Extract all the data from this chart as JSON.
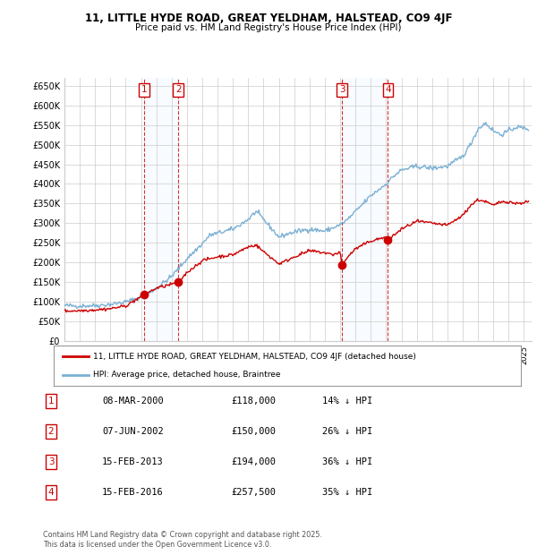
{
  "title1": "11, LITTLE HYDE ROAD, GREAT YELDHAM, HALSTEAD, CO9 4JF",
  "title2": "Price paid vs. HM Land Registry's House Price Index (HPI)",
  "ylim": [
    0,
    670000
  ],
  "yticks": [
    0,
    50000,
    100000,
    150000,
    200000,
    250000,
    300000,
    350000,
    400000,
    450000,
    500000,
    550000,
    600000,
    650000
  ],
  "ytick_labels": [
    "£0",
    "£50K",
    "£100K",
    "£150K",
    "£200K",
    "£250K",
    "£300K",
    "£350K",
    "£400K",
    "£450K",
    "£500K",
    "£550K",
    "£600K",
    "£650K"
  ],
  "xlim_start": 1995.0,
  "xlim_end": 2025.5,
  "sale_dates": [
    2000.19,
    2002.44,
    2013.12,
    2016.12
  ],
  "sale_prices": [
    118000,
    150000,
    194000,
    257500
  ],
  "sale_labels": [
    "1",
    "2",
    "3",
    "4"
  ],
  "legend_label_red": "11, LITTLE HYDE ROAD, GREAT YELDHAM, HALSTEAD, CO9 4JF (detached house)",
  "legend_label_blue": "HPI: Average price, detached house, Braintree",
  "table_rows": [
    [
      "1",
      "08-MAR-2000",
      "£118,000",
      "14% ↓ HPI"
    ],
    [
      "2",
      "07-JUN-2002",
      "£150,000",
      "26% ↓ HPI"
    ],
    [
      "3",
      "15-FEB-2013",
      "£194,000",
      "36% ↓ HPI"
    ],
    [
      "4",
      "15-FEB-2016",
      "£257,500",
      "35% ↓ HPI"
    ]
  ],
  "footnote": "Contains HM Land Registry data © Crown copyright and database right 2025.\nThis data is licensed under the Open Government Licence v3.0.",
  "bg_color": "#ffffff",
  "grid_color": "#cccccc",
  "red_color": "#cc0000",
  "blue_color": "#7ab0d4",
  "shade_color": "#ddeeff",
  "hpi_anchors": [
    [
      1995.0,
      91000
    ],
    [
      1996.0,
      90000
    ],
    [
      1997.0,
      91000
    ],
    [
      1998.0,
      94000
    ],
    [
      1999.0,
      100000
    ],
    [
      2000.0,
      112000
    ],
    [
      2001.0,
      135000
    ],
    [
      2002.0,
      165000
    ],
    [
      2003.0,
      210000
    ],
    [
      2004.0,
      248000
    ],
    [
      2004.5,
      270000
    ],
    [
      2005.0,
      275000
    ],
    [
      2006.0,
      285000
    ],
    [
      2007.0,
      310000
    ],
    [
      2007.5,
      330000
    ],
    [
      2008.0,
      310000
    ],
    [
      2009.0,
      265000
    ],
    [
      2009.5,
      272000
    ],
    [
      2010.0,
      278000
    ],
    [
      2011.0,
      285000
    ],
    [
      2012.0,
      280000
    ],
    [
      2013.0,
      296000
    ],
    [
      2013.5,
      310000
    ],
    [
      2014.0,
      330000
    ],
    [
      2015.0,
      370000
    ],
    [
      2016.0,
      400000
    ],
    [
      2016.5,
      420000
    ],
    [
      2017.0,
      435000
    ],
    [
      2018.0,
      445000
    ],
    [
      2019.0,
      440000
    ],
    [
      2020.0,
      445000
    ],
    [
      2021.0,
      470000
    ],
    [
      2021.5,
      500000
    ],
    [
      2022.0,
      540000
    ],
    [
      2022.5,
      555000
    ],
    [
      2023.0,
      535000
    ],
    [
      2023.5,
      525000
    ],
    [
      2024.0,
      535000
    ],
    [
      2024.5,
      545000
    ],
    [
      2025.3,
      540000
    ]
  ],
  "red_anchors": [
    [
      1995.0,
      77000
    ],
    [
      1996.0,
      78000
    ],
    [
      1997.0,
      80000
    ],
    [
      1998.0,
      83000
    ],
    [
      1999.0,
      90000
    ],
    [
      2000.19,
      118000
    ],
    [
      2001.0,
      135000
    ],
    [
      2002.0,
      145000
    ],
    [
      2002.44,
      150000
    ],
    [
      2003.0,
      175000
    ],
    [
      2004.0,
      205000
    ],
    [
      2005.0,
      215000
    ],
    [
      2006.0,
      220000
    ],
    [
      2007.0,
      240000
    ],
    [
      2007.5,
      245000
    ],
    [
      2008.0,
      228000
    ],
    [
      2009.0,
      197000
    ],
    [
      2009.5,
      205000
    ],
    [
      2010.0,
      215000
    ],
    [
      2011.0,
      230000
    ],
    [
      2012.0,
      225000
    ],
    [
      2012.5,
      220000
    ],
    [
      2013.0,
      227000
    ],
    [
      2013.12,
      194000
    ],
    [
      2013.5,
      215000
    ],
    [
      2014.0,
      235000
    ],
    [
      2015.0,
      255000
    ],
    [
      2016.0,
      265000
    ],
    [
      2016.12,
      257500
    ],
    [
      2017.0,
      285000
    ],
    [
      2018.0,
      305000
    ],
    [
      2019.0,
      300000
    ],
    [
      2020.0,
      295000
    ],
    [
      2021.0,
      320000
    ],
    [
      2021.5,
      345000
    ],
    [
      2022.0,
      360000
    ],
    [
      2022.5,
      355000
    ],
    [
      2023.0,
      345000
    ],
    [
      2023.5,
      355000
    ],
    [
      2024.0,
      355000
    ],
    [
      2024.5,
      350000
    ],
    [
      2025.3,
      355000
    ]
  ]
}
